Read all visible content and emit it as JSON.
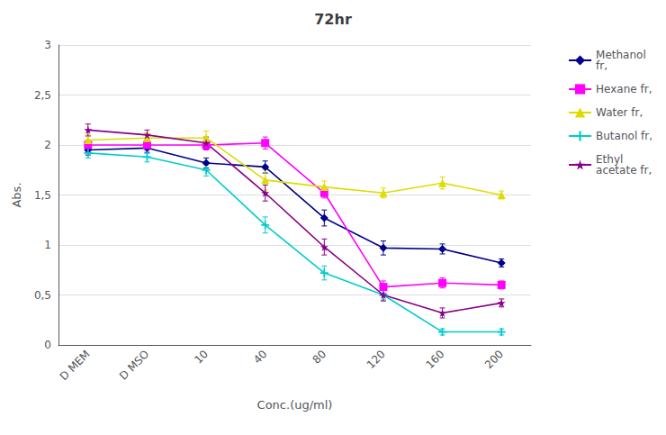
{
  "chart_data": {
    "type": "line",
    "title": "72hr",
    "x_label": "Conc.(ug/ml)",
    "y_label": "Abs.",
    "categories": [
      "D MEM",
      "D MSO",
      "10",
      "40",
      "80",
      "120",
      "160",
      "200"
    ],
    "series": [
      {
        "name": "Methanol\nfr,",
        "color": "#00008B",
        "marker": "diamond",
        "values": [
          1.95,
          1.97,
          1.82,
          1.78,
          1.27,
          0.97,
          0.96,
          0.82
        ],
        "errors": [
          0.05,
          0.05,
          0.05,
          0.06,
          0.08,
          0.07,
          0.05,
          0.04
        ]
      },
      {
        "name": "Hexane fr,",
        "color": "#FF00FF",
        "marker": "square",
        "values": [
          2.0,
          2.0,
          2.0,
          2.02,
          1.52,
          0.58,
          0.62,
          0.6
        ],
        "errors": [
          0.05,
          0.05,
          0.05,
          0.06,
          0.05,
          0.06,
          0.05,
          0.04
        ]
      },
      {
        "name": "Water fr,",
        "color": "#DDDD00",
        "marker": "triangle",
        "values": [
          2.05,
          2.07,
          2.07,
          1.65,
          1.58,
          1.52,
          1.62,
          1.5
        ],
        "errors": [
          0.05,
          0.05,
          0.07,
          0.1,
          0.06,
          0.05,
          0.06,
          0.04
        ]
      },
      {
        "name": "Butanol fr,",
        "color": "#00CCCC",
        "marker": "plus",
        "values": [
          1.92,
          1.88,
          1.75,
          1.2,
          0.72,
          0.5,
          0.13,
          0.13
        ],
        "errors": [
          0.05,
          0.05,
          0.06,
          0.08,
          0.07,
          0.05,
          0.03,
          0.03
        ]
      },
      {
        "name": "Ethyl\nacetate fr,",
        "color": "#880088",
        "marker": "star",
        "values": [
          2.15,
          2.1,
          2.02,
          1.52,
          0.98,
          0.5,
          0.32,
          0.42
        ],
        "errors": [
          0.06,
          0.05,
          0.06,
          0.08,
          0.08,
          0.06,
          0.05,
          0.04
        ]
      }
    ],
    "ylim": [
      0,
      3
    ],
    "yticks": [
      0,
      {
        "value": 0.5,
        "label": "0,5"
      },
      1,
      {
        "value": 1.5,
        "label": "1,5"
      },
      2,
      {
        "value": 2.5,
        "label": "2,5"
      },
      3
    ],
    "grid": true,
    "legend": "right"
  }
}
